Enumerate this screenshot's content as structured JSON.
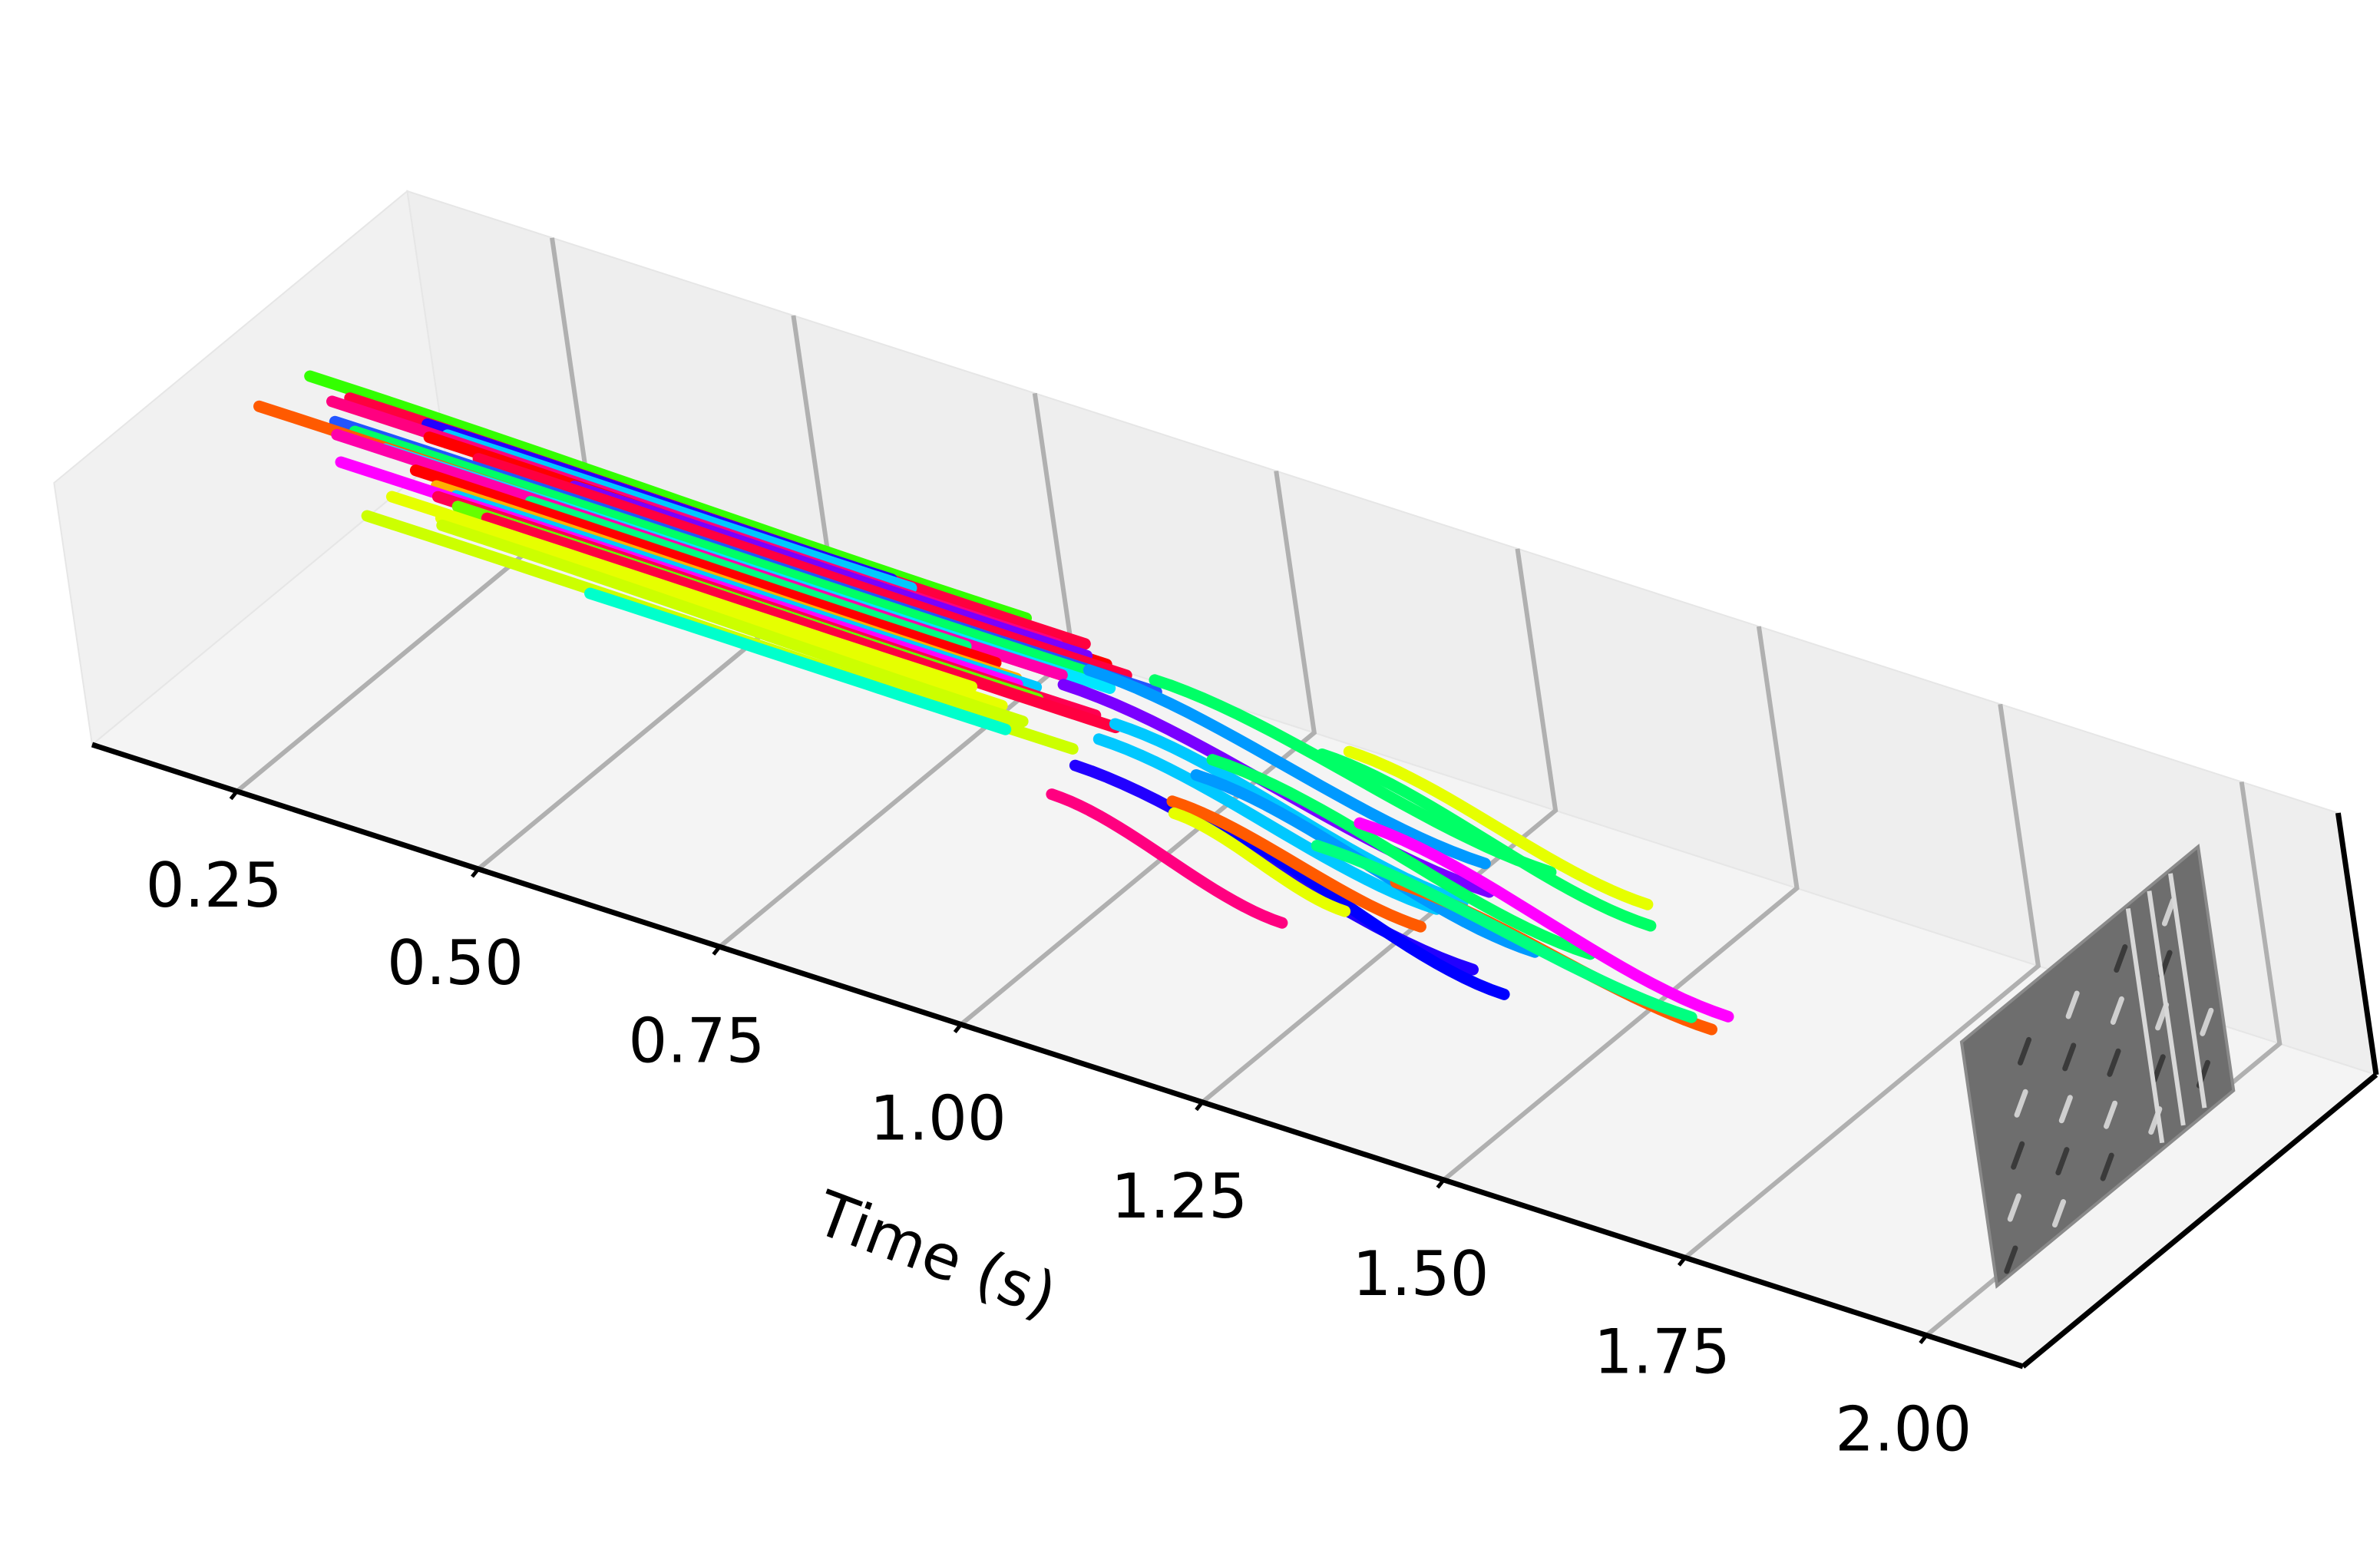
{
  "chart_data": {
    "type": "scatter",
    "projection": "3d",
    "title": "",
    "xlabel": "Time (s)",
    "ylabel": "",
    "zlabel": "",
    "xlim": [
      0.1,
      2.1
    ],
    "xticks": [
      "0.25",
      "0.50",
      "0.75",
      "1.00",
      "1.25",
      "1.50",
      "1.75",
      "2.00"
    ],
    "grid": true,
    "legend": "none",
    "pane_color": "#f2f2f2",
    "image_plane": {
      "time": 2.02,
      "style": "grayscale event frame"
    },
    "series": [
      {
        "color": "#33ff00",
        "t0": 0.18,
        "t1": 0.92,
        "y0": 0.5,
        "y1": 0.5,
        "z0": 0.88,
        "z1": 0.78
      },
      {
        "color": "#ff0040",
        "t0": 0.22,
        "t1": 0.98,
        "y0": 0.5,
        "y1": 0.5,
        "z0": 0.8,
        "z1": 0.72
      },
      {
        "color": "#2200ff",
        "t0": 0.3,
        "t1": 0.78,
        "y0": 0.5,
        "y1": 0.5,
        "z0": 0.79,
        "z1": 0.74
      },
      {
        "color": "#00c8ff",
        "t0": 0.32,
        "t1": 0.8,
        "y0": 0.5,
        "y1": 0.5,
        "z0": 0.75,
        "z1": 0.72
      },
      {
        "color": "#ff0080",
        "t0": 0.2,
        "t1": 0.95,
        "y0": 0.5,
        "y1": 0.5,
        "z0": 0.72,
        "z1": 0.64
      },
      {
        "color": "#ff0000",
        "t0": 0.3,
        "t1": 1.0,
        "y0": 0.5,
        "y1": 0.5,
        "z0": 0.68,
        "z1": 0.6
      },
      {
        "color": "#7a00ff",
        "t0": 0.45,
        "t1": 0.98,
        "y0": 0.5,
        "y1": 0.5,
        "z0": 0.66,
        "z1": 0.62
      },
      {
        "color": "#ff0040",
        "t0": 0.35,
        "t1": 1.02,
        "y0": 0.5,
        "y1": 0.5,
        "z0": 0.63,
        "z1": 0.56
      },
      {
        "color": "#2255ff",
        "t0": 0.2,
        "t1": 1.05,
        "y0": 0.5,
        "y1": 0.5,
        "z0": 0.55,
        "z1": 0.5
      },
      {
        "color": "#00ff66",
        "t0": 0.22,
        "t1": 1.0,
        "y0": 0.5,
        "y1": 0.5,
        "z0": 0.52,
        "z1": 0.48
      },
      {
        "color": "#ff5a00",
        "t0": 0.12,
        "t1": 0.95,
        "y0": 0.5,
        "y1": 0.5,
        "z0": 0.47,
        "z1": 0.38
      },
      {
        "color": "#00e6ff",
        "t0": 0.25,
        "t1": 1.0,
        "y0": 0.5,
        "y1": 0.5,
        "z0": 0.45,
        "z1": 0.4
      },
      {
        "color": "#ff00aa",
        "t0": 0.2,
        "t1": 0.95,
        "y0": 0.5,
        "y1": 0.5,
        "z0": 0.44,
        "z1": 0.38
      },
      {
        "color": "#00ff80",
        "t0": 0.4,
        "t1": 0.85,
        "y0": 0.5,
        "y1": 0.5,
        "z0": 0.4,
        "z1": 0.36
      },
      {
        "color": "#ff0000",
        "t0": 0.28,
        "t1": 0.88,
        "y0": 0.5,
        "y1": 0.5,
        "z0": 0.35,
        "z1": 0.3
      },
      {
        "color": "#ffb000",
        "t0": 0.3,
        "t1": 0.9,
        "y0": 0.5,
        "y1": 0.5,
        "z0": 0.27,
        "z1": 0.22
      },
      {
        "color": "#00c8ff",
        "t0": 0.32,
        "t1": 0.92,
        "y0": 0.5,
        "y1": 0.5,
        "z0": 0.24,
        "z1": 0.2
      },
      {
        "color": "#ff00ff",
        "t0": 0.2,
        "t1": 0.9,
        "y0": 0.5,
        "y1": 0.5,
        "z0": 0.21,
        "z1": 0.17
      },
      {
        "color": "#ff0050",
        "t0": 0.3,
        "t1": 0.98,
        "y0": 0.5,
        "y1": 0.5,
        "z0": 0.18,
        "z1": 0.12
      },
      {
        "color": "#66ff00",
        "t0": 0.32,
        "t1": 0.92,
        "y0": 0.5,
        "y1": 0.5,
        "z0": 0.15,
        "z1": 0.1
      },
      {
        "color": "#ff0040",
        "t0": 0.35,
        "t1": 1.0,
        "y0": 0.5,
        "y1": 0.5,
        "z0": 0.13,
        "z1": 0.07
      },
      {
        "color": "#e6ff00",
        "t0": 0.25,
        "t1": 0.85,
        "y0": 0.5,
        "y1": 0.5,
        "z0": 0.05,
        "z1": 0.02
      },
      {
        "color": "#e6ff00",
        "t0": 0.3,
        "t1": 0.88,
        "y0": 0.5,
        "y1": 0.5,
        "z0": 0.0,
        "z1": -0.06
      },
      {
        "color": "#ccff00",
        "t0": 0.3,
        "t1": 0.9,
        "y0": 0.5,
        "y1": 0.5,
        "z0": -0.06,
        "z1": -0.14
      },
      {
        "color": "#ccff00",
        "t0": 0.22,
        "t1": 0.95,
        "y0": 0.5,
        "y1": 0.5,
        "z0": -0.19,
        "z1": -0.24
      },
      {
        "color": "#00ffcc",
        "t0": 0.45,
        "t1": 0.88,
        "y0": 0.5,
        "y1": 0.5,
        "z0": -0.24,
        "z1": -0.26
      },
      {
        "color": "#00ff66",
        "t0": 1.05,
        "t1": 1.45,
        "y0": 0.5,
        "y1": 0.5,
        "z0": 0.6,
        "z1": 0.03
      },
      {
        "color": "#0099ff",
        "t0": 0.98,
        "t1": 1.38,
        "y0": 0.5,
        "y1": 0.5,
        "z0": 0.5,
        "z1": -0.08
      },
      {
        "color": "#e6ff00",
        "t0": 1.25,
        "t1": 1.55,
        "y0": 0.5,
        "y1": 0.5,
        "z0": 0.52,
        "z1": 0.02
      },
      {
        "color": "#00ff66",
        "t0": 1.22,
        "t1": 1.55,
        "y0": 0.5,
        "y1": 0.5,
        "z0": 0.42,
        "z1": -0.16
      },
      {
        "color": "#7a00ff",
        "t0": 0.95,
        "t1": 1.38,
        "y0": 0.5,
        "y1": 0.5,
        "z0": 0.3,
        "z1": -0.32
      },
      {
        "color": "#00c8ff",
        "t0": 1.0,
        "t1": 1.35,
        "y0": 0.5,
        "y1": 0.5,
        "z0": 0.1,
        "z1": -0.48
      },
      {
        "color": "#00ff66",
        "t0": 1.1,
        "t1": 1.48,
        "y0": 0.5,
        "y1": 0.5,
        "z0": 0.06,
        "z1": -0.58
      },
      {
        "color": "#ff00ff",
        "t0": 1.25,
        "t1": 1.62,
        "y0": 0.5,
        "y1": 0.5,
        "z0": -0.08,
        "z1": -0.74
      },
      {
        "color": "#00c8ff",
        "t0": 0.98,
        "t1": 1.32,
        "y0": 0.5,
        "y1": 0.5,
        "z0": -0.08,
        "z1": -0.62
      },
      {
        "color": "#0099ff",
        "t0": 1.08,
        "t1": 1.42,
        "y0": 0.5,
        "y1": 0.5,
        "z0": -0.12,
        "z1": -0.72
      },
      {
        "color": "#ff5a00",
        "t0": 1.28,
        "t1": 1.6,
        "y0": 0.5,
        "y1": 0.5,
        "z0": -0.5,
        "z1": -0.9
      },
      {
        "color": "#00ff80",
        "t0": 1.2,
        "t1": 1.58,
        "y0": 0.5,
        "y1": 0.5,
        "z0": -0.4,
        "z1": -0.85
      },
      {
        "color": "#2200ff",
        "t0": 0.95,
        "t1": 1.35,
        "y0": 0.5,
        "y1": 0.5,
        "z0": -0.38,
        "z1": -1.05
      },
      {
        "color": "#0000ff",
        "t0": 1.05,
        "t1": 1.38,
        "y0": 0.5,
        "y1": 0.5,
        "z0": -0.45,
        "z1": -1.18
      },
      {
        "color": "#ff5a00",
        "t0": 1.05,
        "t1": 1.3,
        "y0": 0.5,
        "y1": 0.5,
        "z0": -0.42,
        "z1": -0.82
      },
      {
        "color": "#e6ff00",
        "t0": 1.05,
        "t1": 1.22,
        "y0": 0.5,
        "y1": 0.5,
        "z0": -0.52,
        "z1": -0.9
      },
      {
        "color": "#ff0080",
        "t0": 0.92,
        "t1": 1.15,
        "y0": 0.5,
        "y1": 0.5,
        "z0": -0.7,
        "z1": -1.18
      }
    ]
  }
}
